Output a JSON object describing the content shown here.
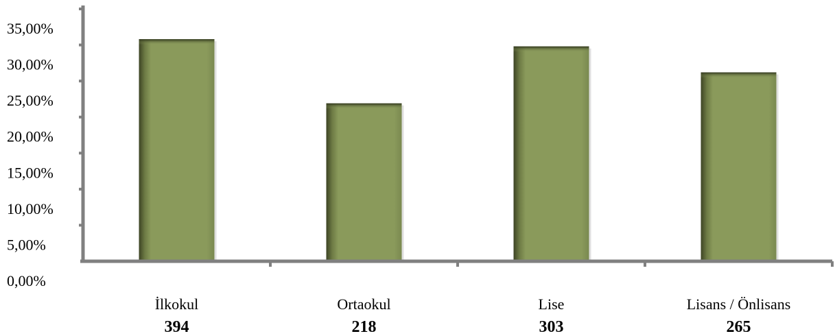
{
  "chart_data": {
    "type": "bar",
    "categories": [
      "İlkokul",
      "Ortaokul",
      "Lise",
      "Lisans / Önlisans"
    ],
    "counts": [
      "394",
      "218",
      "303",
      "265"
    ],
    "values": [
      30.8,
      21.9,
      29.8,
      26.2
    ],
    "y_ticks": [
      "0,00%",
      "5,00%",
      "10,00%",
      "15,00%",
      "20,00%",
      "25,00%",
      "30,00%",
      "35,00%"
    ],
    "ylim": [
      0,
      35
    ],
    "grid": false,
    "colors": {
      "bar": "#8a9a5b",
      "bar_shadow": "#3d4424",
      "axis": "#808080"
    }
  }
}
